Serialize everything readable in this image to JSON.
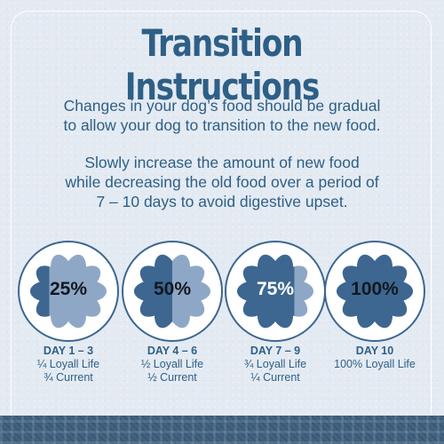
{
  "title": "Transition Instructions",
  "paragraphs": {
    "p1_line1": "Changes in your dog’s food should be gradual",
    "p1_line2": "to allow your dog to transition to the new food.",
    "p2_line1": "Slowly increase the amount of new food",
    "p2_line2": "while decreasing the old food over a period of",
    "p2_line3": "7 – 10 days to avoid digestive upset."
  },
  "colors": {
    "title": "#2e5f86",
    "new_food": "#3d6790",
    "old_food": "#8fa7c6",
    "circle_bg": "#ffffff",
    "circle_ring": "#3d6790"
  },
  "stages": [
    {
      "percent": "25%",
      "new_fraction": 0.25,
      "day": "DAY 1 – 3",
      "line1": "¼ Loyall Life",
      "line2": "¾ Current"
    },
    {
      "percent": "50%",
      "new_fraction": 0.5,
      "day": "DAY 4 – 6",
      "line1": "½ Loyall Life",
      "line2": "½ Current"
    },
    {
      "percent": "75%",
      "new_fraction": 0.75,
      "day": "DAY 7 – 9",
      "line1": "¾ Loyall Life",
      "line2": "¼ Current"
    },
    {
      "percent": "100%",
      "new_fraction": 1.0,
      "day": "DAY 10",
      "line1": "100% Loyall Life",
      "line2": ""
    }
  ]
}
